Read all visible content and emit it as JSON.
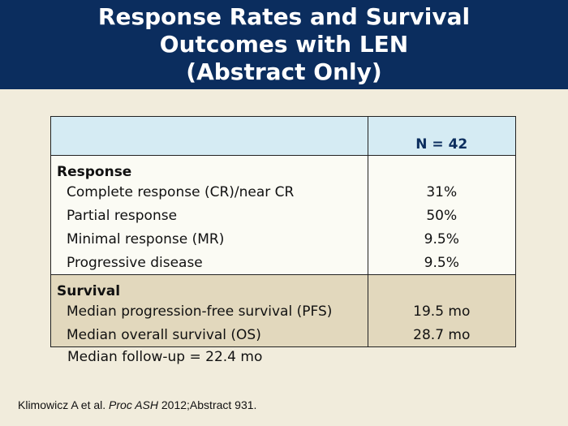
{
  "header": {
    "title_lines": [
      "Response Rates and Survival",
      "Outcomes with LEN",
      "(Abstract Only)"
    ]
  },
  "table": {
    "column_header": "N = 42",
    "sections": [
      {
        "label": "Response",
        "rows": [
          {
            "label": "Complete response (CR)/near CR",
            "value": "31%"
          },
          {
            "label": "Partial response",
            "value": "50%"
          },
          {
            "label": "Minimal response (MR)",
            "value": "9.5%"
          },
          {
            "label": "Progressive disease",
            "value": "9.5%"
          }
        ]
      },
      {
        "label": "Survival",
        "rows": [
          {
            "label": "Median progression-free survival (PFS)",
            "value": "19.5 mo"
          },
          {
            "label": "Median overall survival (OS)",
            "value": "28.7 mo"
          }
        ]
      }
    ]
  },
  "followup": "Median follow-up = 22.4 mo",
  "citation": {
    "authors": "Klimowicz A et al.",
    "journal": "Proc ASH",
    "details": "2012;Abstract 931."
  },
  "colors": {
    "header_bg": "#0b2d5e",
    "page_bg": "#f1ecdc",
    "table_header_bg": "#d5ebf3",
    "survival_bg": "#e2d8bd"
  }
}
